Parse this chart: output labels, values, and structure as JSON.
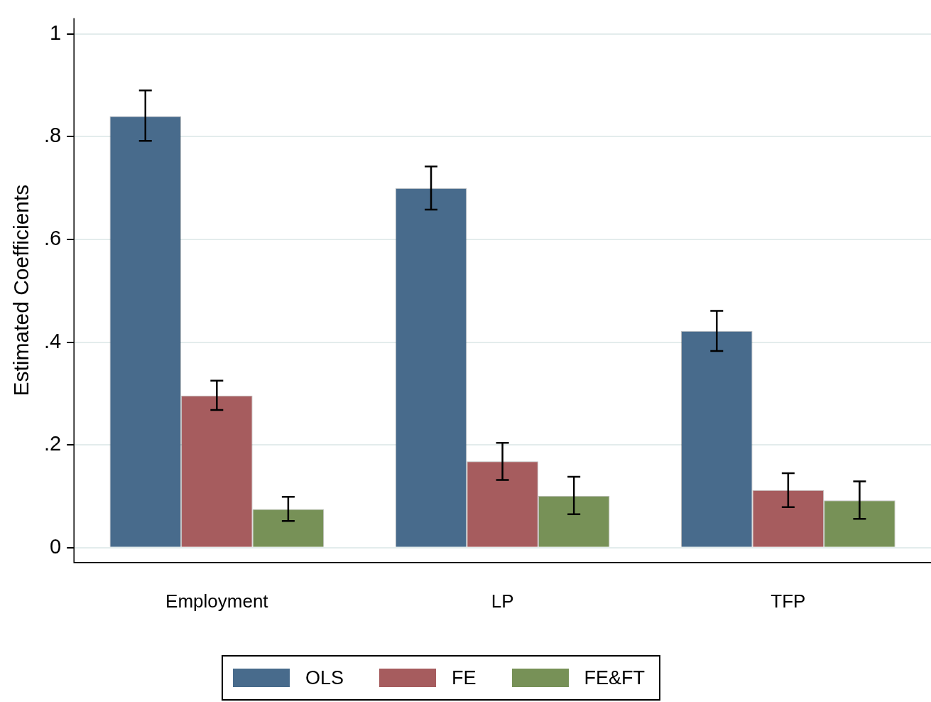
{
  "chart_data": {
    "type": "bar",
    "ylabel": "Estimated Coefficients",
    "categories": [
      "Employment",
      "LP",
      "TFP"
    ],
    "series": [
      {
        "name": "OLS",
        "color": "#486b8c",
        "values": [
          0.84,
          0.7,
          0.422
        ],
        "errors": [
          [
            0.792,
            0.89
          ],
          [
            0.658,
            0.742
          ],
          [
            0.383,
            0.461
          ]
        ]
      },
      {
        "name": "FE",
        "color": "#a65c5e",
        "values": [
          0.296,
          0.168,
          0.112
        ],
        "errors": [
          [
            0.268,
            0.325
          ],
          [
            0.132,
            0.204
          ],
          [
            0.079,
            0.145
          ]
        ]
      },
      {
        "name": "FE&FT",
        "color": "#779157",
        "values": [
          0.075,
          0.101,
          0.092
        ],
        "errors": [
          [
            0.052,
            0.099
          ],
          [
            0.065,
            0.138
          ],
          [
            0.056,
            0.129
          ]
        ]
      }
    ],
    "ylim": [
      -0.029,
      1.031
    ],
    "yticks": [
      0,
      {
        "value": 0.2,
        "label": ".2"
      },
      {
        "value": 0.4,
        "label": ".4"
      },
      {
        "value": 0.6,
        "label": ".6"
      },
      {
        "value": 0.8,
        "label": ".8"
      },
      1
    ],
    "grid": "y",
    "legend": "bottom"
  }
}
